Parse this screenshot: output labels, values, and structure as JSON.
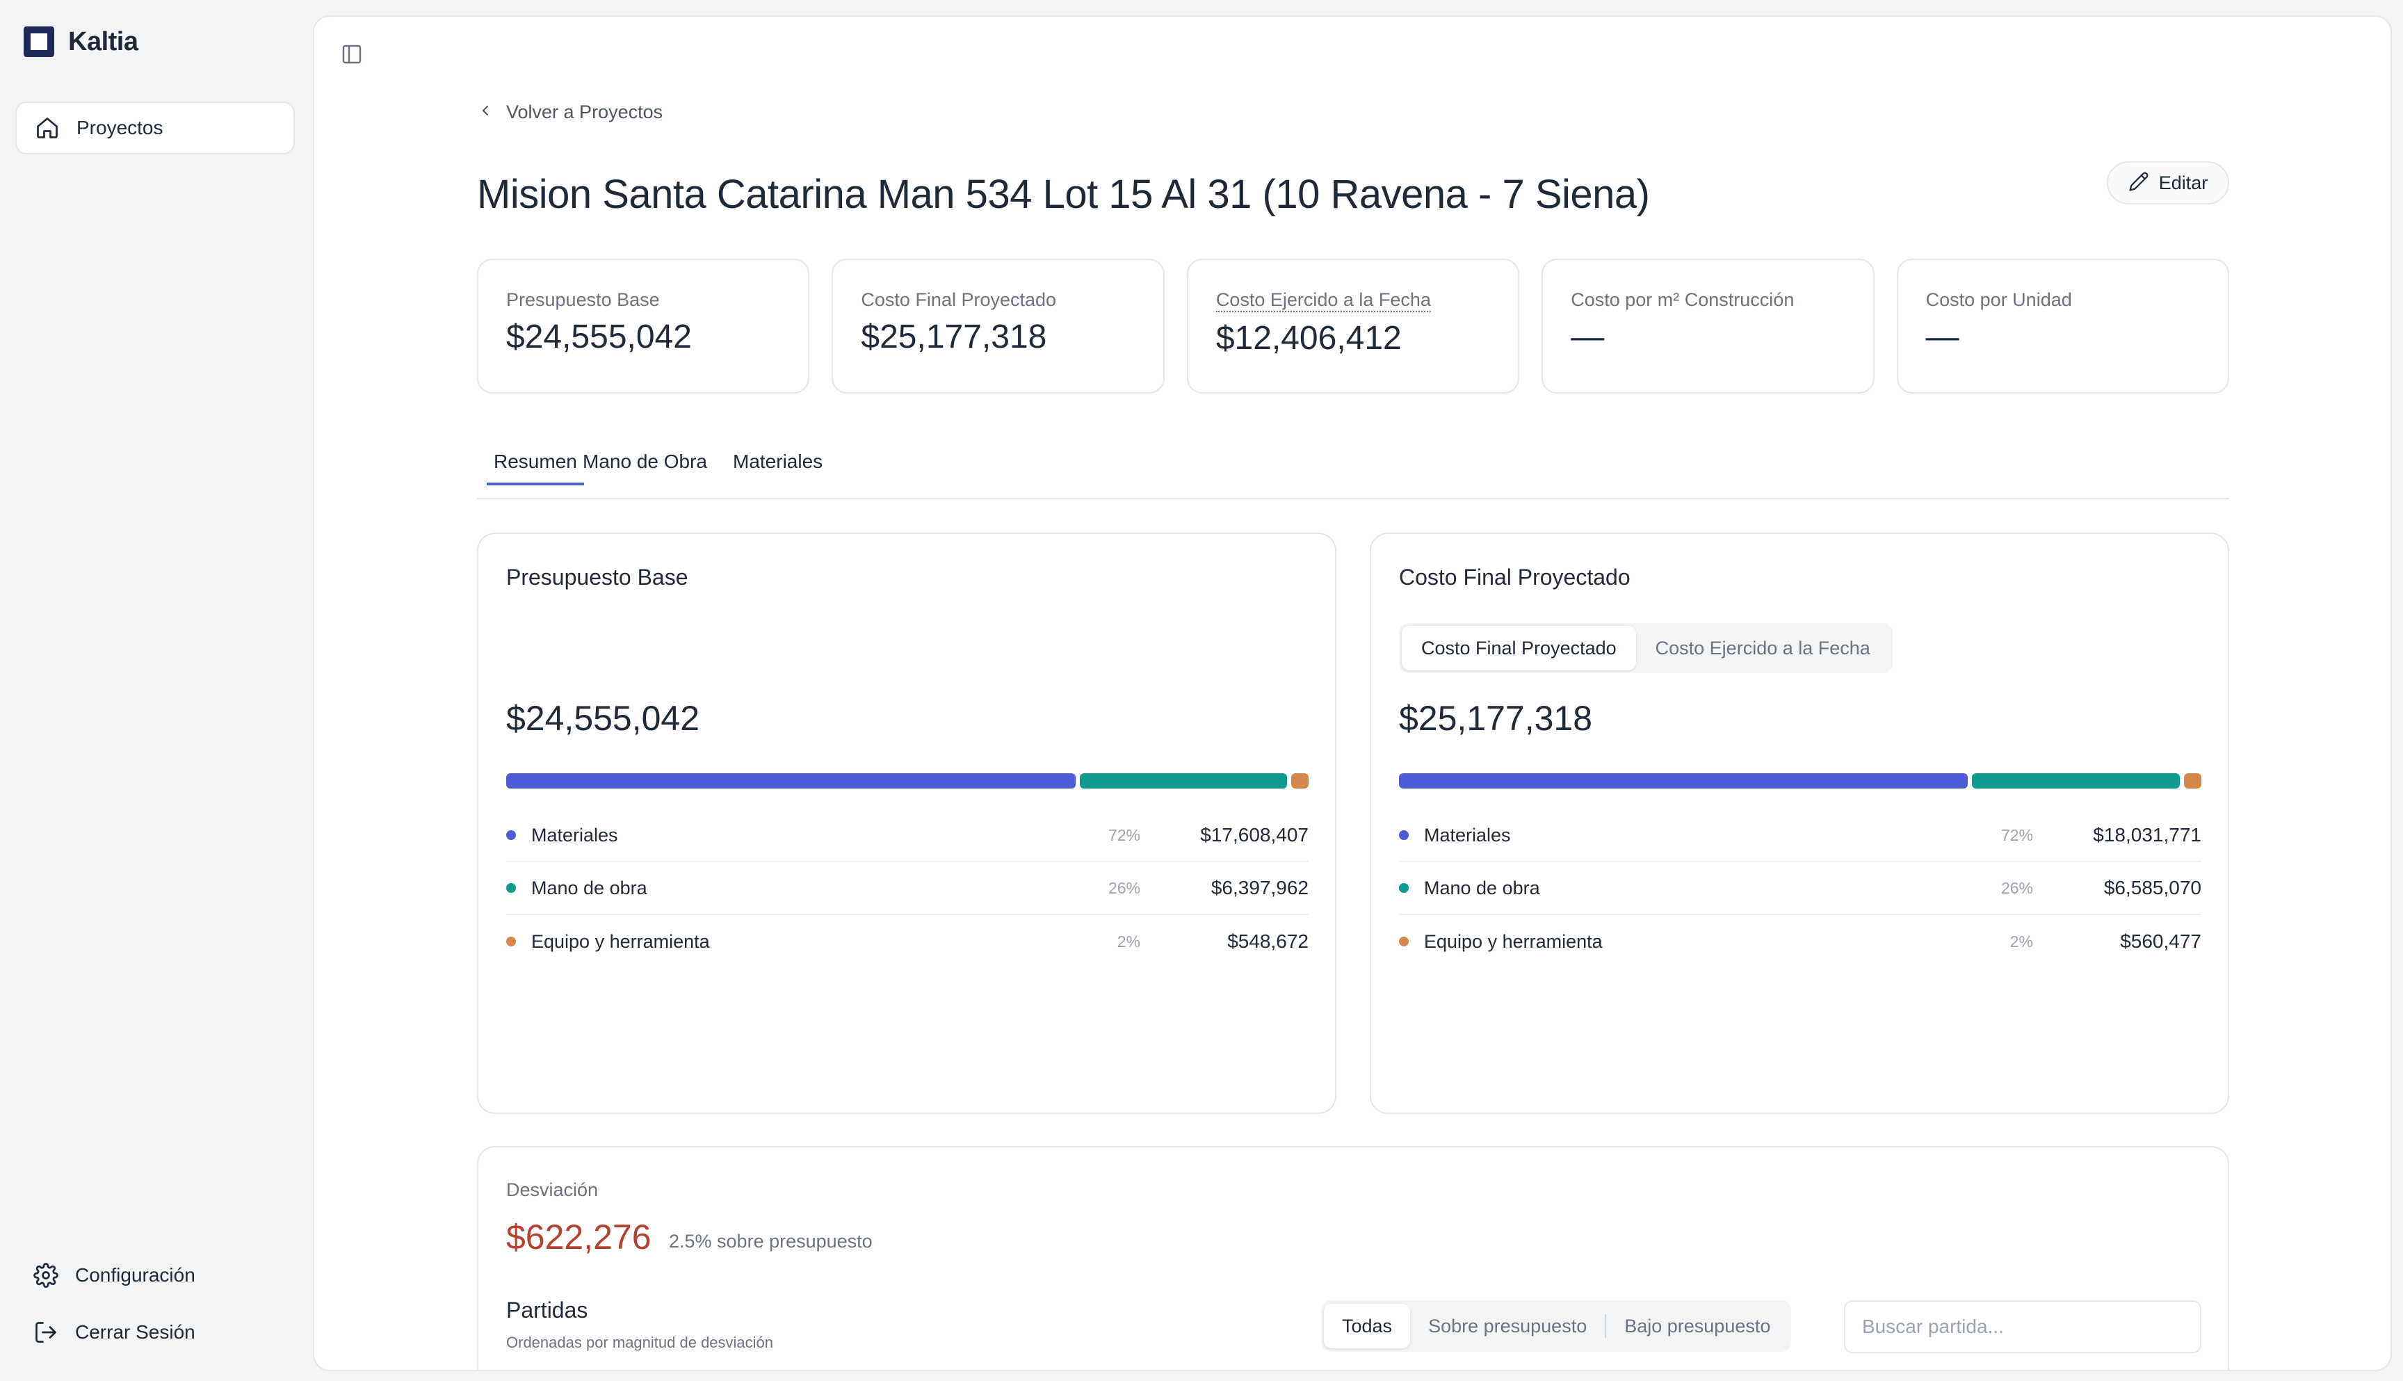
{
  "app": {
    "name": "Kaltia"
  },
  "sidebar": {
    "items": [
      {
        "label": "Proyectos",
        "icon": "home-icon"
      }
    ],
    "bottom": [
      {
        "label": "Configuración",
        "icon": "gear-icon"
      },
      {
        "label": "Cerrar Sesión",
        "icon": "logout-icon"
      }
    ]
  },
  "page": {
    "back_label": "Volver a Proyectos",
    "title": "Mision Santa Catarina Man 534 Lot 15 Al 31 (10 Ravena - 7 Siena)",
    "edit_label": "Editar"
  },
  "kpis": [
    {
      "label": "Presupuesto Base",
      "value": "$24,555,042"
    },
    {
      "label": "Costo Final Proyectado",
      "value": "$25,177,318"
    },
    {
      "label": "Costo Ejercido a la Fecha",
      "value": "$12,406,412"
    },
    {
      "label": "Costo por m² Construcción",
      "value": "—"
    },
    {
      "label": "Costo por Unidad",
      "value": "—"
    }
  ],
  "tabs": [
    {
      "label": "Resumen",
      "active": true
    },
    {
      "label": "Mano de Obra",
      "active": false
    },
    {
      "label": "Materiales",
      "active": false
    }
  ],
  "colors": {
    "materiales": "#4f5bd5",
    "mano_obra": "#0f9a8f",
    "equipo": "#d4894a",
    "deviation": "#b4412f",
    "accent": "#4f5bd5"
  },
  "budget_card": {
    "title": "Presupuesto Base",
    "total": "$24,555,042",
    "rows": [
      {
        "name": "Materiales",
        "pct": "72%",
        "amount": "$17,608,407",
        "share": 0.717
      },
      {
        "name": "Mano de obra",
        "pct": "26%",
        "amount": "$6,397,962",
        "share": 0.261
      },
      {
        "name": "Equipo y herramienta",
        "pct": "2%",
        "amount": "$548,672",
        "share": 0.022
      }
    ]
  },
  "projected_card": {
    "title": "Costo Final Proyectado",
    "toggle": [
      {
        "label": "Costo Final Proyectado",
        "active": true
      },
      {
        "label": "Costo Ejercido a la Fecha",
        "active": false
      }
    ],
    "total": "$25,177,318",
    "rows": [
      {
        "name": "Materiales",
        "pct": "72%",
        "amount": "$18,031,771",
        "share": 0.716
      },
      {
        "name": "Mano de obra",
        "pct": "26%",
        "amount": "$6,585,070",
        "share": 0.262
      },
      {
        "name": "Equipo y herramienta",
        "pct": "2%",
        "amount": "$560,477",
        "share": 0.022
      }
    ]
  },
  "deviation": {
    "label": "Desviación",
    "amount": "$622,276",
    "note": "2.5% sobre presupuesto",
    "partidas_title": "Partidas",
    "partidas_subtitle": "Ordenadas por magnitud de desviación",
    "filters": [
      {
        "label": "Todas",
        "active": true
      },
      {
        "label": "Sobre presupuesto",
        "active": false
      },
      {
        "label": "Bajo presupuesto",
        "active": false
      }
    ],
    "search_placeholder": "Buscar partida..."
  }
}
